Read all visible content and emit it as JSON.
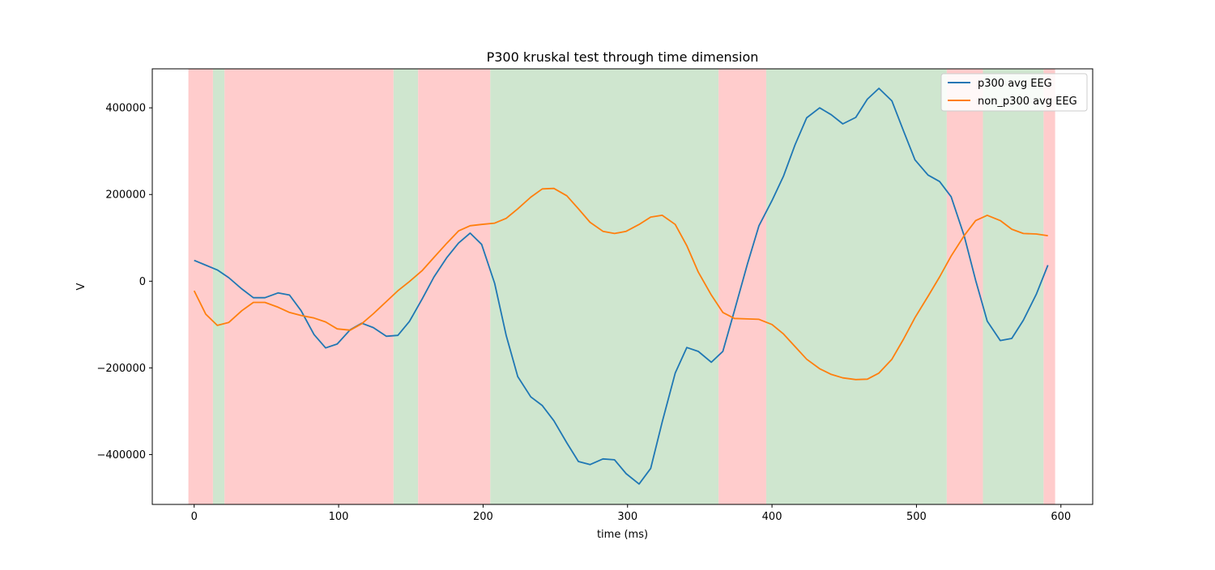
{
  "chart_data": {
    "type": "line",
    "title": "P300 kruskal test through time dimension",
    "xlabel": "time (ms)",
    "ylabel": "V",
    "xlim": [
      -29,
      622
    ],
    "ylim": [
      -515000,
      490000
    ],
    "xticks": [
      0,
      100,
      200,
      300,
      400,
      500,
      600
    ],
    "xtick_labels": [
      "0",
      "100",
      "200",
      "300",
      "400",
      "500",
      "600"
    ],
    "yticks": [
      -400000,
      -200000,
      0,
      200000,
      400000
    ],
    "ytick_labels": [
      "−400000",
      "−200000",
      "0",
      "200000",
      "400000"
    ],
    "grid": false,
    "legend_position": "top-right",
    "significance_colors": {
      "significant": "#cfe6cf",
      "not_significant": "#ffcccc"
    },
    "significance_bands": [
      {
        "x0": -4,
        "x1": 13,
        "significant": false
      },
      {
        "x0": 13,
        "x1": 21,
        "significant": true
      },
      {
        "x0": 21,
        "x1": 138,
        "significant": false
      },
      {
        "x0": 138,
        "x1": 155,
        "significant": true
      },
      {
        "x0": 155,
        "x1": 205,
        "significant": false
      },
      {
        "x0": 205,
        "x1": 363,
        "significant": true
      },
      {
        "x0": 363,
        "x1": 396,
        "significant": false
      },
      {
        "x0": 396,
        "x1": 521,
        "significant": true
      },
      {
        "x0": 521,
        "x1": 546,
        "significant": false
      },
      {
        "x0": 546,
        "x1": 588,
        "significant": true
      },
      {
        "x0": 588,
        "x1": 596,
        "significant": false
      }
    ],
    "series": [
      {
        "name": "p300 avg EEG",
        "color": "#1f77b4",
        "points": [
          [
            0,
            48000
          ],
          [
            8,
            37000
          ],
          [
            16,
            26000
          ],
          [
            24,
            8000
          ],
          [
            33,
            -18000
          ],
          [
            41,
            -38000
          ],
          [
            49,
            -38000
          ],
          [
            58,
            -27000
          ],
          [
            66,
            -32000
          ],
          [
            74,
            -68000
          ],
          [
            83,
            -123000
          ],
          [
            91,
            -154000
          ],
          [
            99,
            -145000
          ],
          [
            108,
            -112000
          ],
          [
            116,
            -97000
          ],
          [
            124,
            -107000
          ],
          [
            133,
            -127000
          ],
          [
            141,
            -125000
          ],
          [
            149,
            -93000
          ],
          [
            158,
            -40000
          ],
          [
            166,
            10000
          ],
          [
            175,
            55000
          ],
          [
            183,
            88000
          ],
          [
            191,
            111000
          ],
          [
            199,
            85000
          ],
          [
            208,
            -5000
          ],
          [
            216,
            -125000
          ],
          [
            224,
            -220000
          ],
          [
            233,
            -267000
          ],
          [
            241,
            -287000
          ],
          [
            249,
            -322000
          ],
          [
            258,
            -373000
          ],
          [
            266,
            -416000
          ],
          [
            274,
            -423000
          ],
          [
            283,
            -410000
          ],
          [
            291,
            -412000
          ],
          [
            299,
            -444000
          ],
          [
            308,
            -468000
          ],
          [
            316,
            -432000
          ],
          [
            324,
            -325000
          ],
          [
            333,
            -212000
          ],
          [
            341,
            -153000
          ],
          [
            349,
            -162000
          ],
          [
            358,
            -187000
          ],
          [
            366,
            -162000
          ],
          [
            374,
            -68000
          ],
          [
            383,
            40000
          ],
          [
            391,
            128000
          ],
          [
            400,
            186000
          ],
          [
            408,
            243000
          ],
          [
            416,
            315000
          ],
          [
            424,
            377000
          ],
          [
            433,
            400000
          ],
          [
            441,
            384000
          ],
          [
            449,
            363000
          ],
          [
            458,
            378000
          ],
          [
            466,
            420000
          ],
          [
            474,
            445000
          ],
          [
            483,
            416000
          ],
          [
            491,
            347000
          ],
          [
            499,
            280000
          ],
          [
            508,
            245000
          ],
          [
            516,
            230000
          ],
          [
            524,
            195000
          ],
          [
            533,
            105000
          ],
          [
            541,
            2000
          ],
          [
            549,
            -92000
          ],
          [
            558,
            -137000
          ],
          [
            566,
            -132000
          ],
          [
            574,
            -90000
          ],
          [
            583,
            -30000
          ],
          [
            591,
            37000
          ]
        ]
      },
      {
        "name": "non_p300 avg EEG",
        "color": "#ff7f0e",
        "points": [
          [
            0,
            -22000
          ],
          [
            8,
            -76000
          ],
          [
            16,
            -102000
          ],
          [
            24,
            -95000
          ],
          [
            33,
            -68000
          ],
          [
            41,
            -49000
          ],
          [
            49,
            -49000
          ],
          [
            58,
            -60000
          ],
          [
            66,
            -72000
          ],
          [
            74,
            -79000
          ],
          [
            83,
            -85000
          ],
          [
            91,
            -94000
          ],
          [
            99,
            -110000
          ],
          [
            108,
            -113000
          ],
          [
            116,
            -98000
          ],
          [
            124,
            -75000
          ],
          [
            133,
            -47000
          ],
          [
            141,
            -22000
          ],
          [
            149,
            -1000
          ],
          [
            158,
            25000
          ],
          [
            166,
            55000
          ],
          [
            175,
            88000
          ],
          [
            183,
            116000
          ],
          [
            191,
            128000
          ],
          [
            199,
            131000
          ],
          [
            208,
            134000
          ],
          [
            216,
            145000
          ],
          [
            224,
            167000
          ],
          [
            233,
            194000
          ],
          [
            241,
            213000
          ],
          [
            249,
            214000
          ],
          [
            258,
            197000
          ],
          [
            266,
            167000
          ],
          [
            274,
            136000
          ],
          [
            283,
            115000
          ],
          [
            291,
            110000
          ],
          [
            299,
            115000
          ],
          [
            308,
            131000
          ],
          [
            316,
            148000
          ],
          [
            324,
            152000
          ],
          [
            333,
            131000
          ],
          [
            341,
            82000
          ],
          [
            349,
            21000
          ],
          [
            358,
            -32000
          ],
          [
            366,
            -72000
          ],
          [
            374,
            -86000
          ],
          [
            383,
            -87000
          ],
          [
            391,
            -88000
          ],
          [
            400,
            -100000
          ],
          [
            408,
            -122000
          ],
          [
            416,
            -151000
          ],
          [
            424,
            -180000
          ],
          [
            433,
            -202000
          ],
          [
            441,
            -215000
          ],
          [
            449,
            -223000
          ],
          [
            458,
            -227000
          ],
          [
            466,
            -226000
          ],
          [
            474,
            -212000
          ],
          [
            483,
            -180000
          ],
          [
            491,
            -134000
          ],
          [
            499,
            -84000
          ],
          [
            508,
            -35000
          ],
          [
            516,
            10000
          ],
          [
            524,
            58000
          ],
          [
            533,
            105000
          ],
          [
            541,
            140000
          ],
          [
            549,
            152000
          ],
          [
            558,
            140000
          ],
          [
            566,
            120000
          ],
          [
            574,
            110000
          ],
          [
            583,
            109000
          ],
          [
            591,
            105000
          ]
        ]
      }
    ]
  }
}
